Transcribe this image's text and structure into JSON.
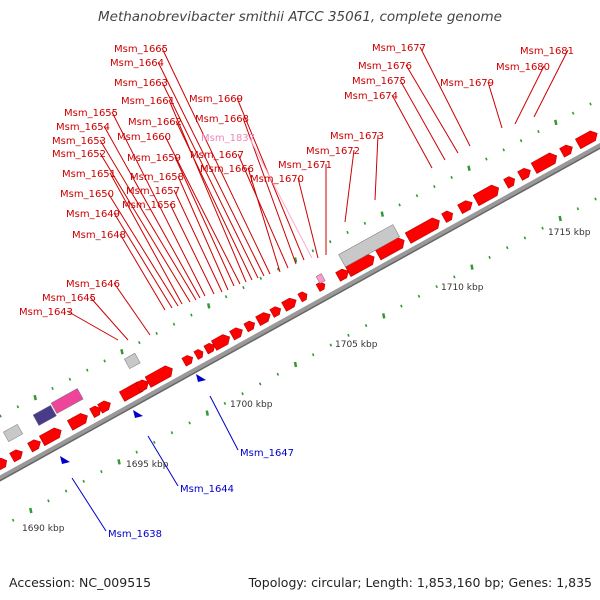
{
  "title": "Methanobrevibacter smithii ATCC 35061, complete genome",
  "accession": "Accession: NC_009515",
  "topology": "Topology: circular;",
  "length": "Length: 1,853,160 bp;",
  "genes_count": "Genes: 1,835",
  "colors": {
    "forward_gene": "#ff0000",
    "reverse_gene": "#0000cc",
    "pseudo_gray": "#c8c8c8",
    "rna_pink": "#ee4499",
    "rna_purple": "#4a3a8a",
    "tick_green": "#339933",
    "backbone": "#888888"
  },
  "kbp_ticks": [
    {
      "label": "1690 kbp"
    },
    {
      "label": "1695 kbp"
    },
    {
      "label": "1700 kbp"
    },
    {
      "label": "1705 kbp"
    },
    {
      "label": "1710 kbp"
    },
    {
      "label": "1715 kbp"
    }
  ],
  "gene_labels_top": [
    {
      "name": "Msm_1643"
    },
    {
      "name": "Msm_1645"
    },
    {
      "name": "Msm_1646"
    },
    {
      "name": "Msm_1648"
    },
    {
      "name": "Msm_1649"
    },
    {
      "name": "Msm_1650"
    },
    {
      "name": "Msm_1651"
    },
    {
      "name": "Msm_1652"
    },
    {
      "name": "Msm_1653"
    },
    {
      "name": "Msm_1654"
    },
    {
      "name": "Msm_1655"
    },
    {
      "name": "Msm_1656"
    },
    {
      "name": "Msm_1657"
    },
    {
      "name": "Msm_1658"
    },
    {
      "name": "Msm_1659"
    },
    {
      "name": "Msm_1660"
    },
    {
      "name": "Msm_1661"
    },
    {
      "name": "Msm_1662"
    },
    {
      "name": "Msm_1663"
    },
    {
      "name": "Msm_1664"
    },
    {
      "name": "Msm_1665"
    },
    {
      "name": "Msm_1666"
    },
    {
      "name": "Msm_1667"
    },
    {
      "name": "Msm_1668"
    },
    {
      "name": "Msm_1669"
    },
    {
      "name": "Msm_1837",
      "pink": true
    },
    {
      "name": "Msm_1670"
    },
    {
      "name": "Msm_1671"
    },
    {
      "name": "Msm_1672"
    },
    {
      "name": "Msm_1673"
    },
    {
      "name": "Msm_1674"
    },
    {
      "name": "Msm_1675"
    },
    {
      "name": "Msm_1676"
    },
    {
      "name": "Msm_1677"
    },
    {
      "name": "Msm_1679"
    },
    {
      "name": "Msm_1680"
    },
    {
      "name": "Msm_1681"
    }
  ],
  "gene_labels_bottom": [
    {
      "name": "Msm_1638"
    },
    {
      "name": "Msm_1644"
    },
    {
      "name": "Msm_1647"
    }
  ]
}
